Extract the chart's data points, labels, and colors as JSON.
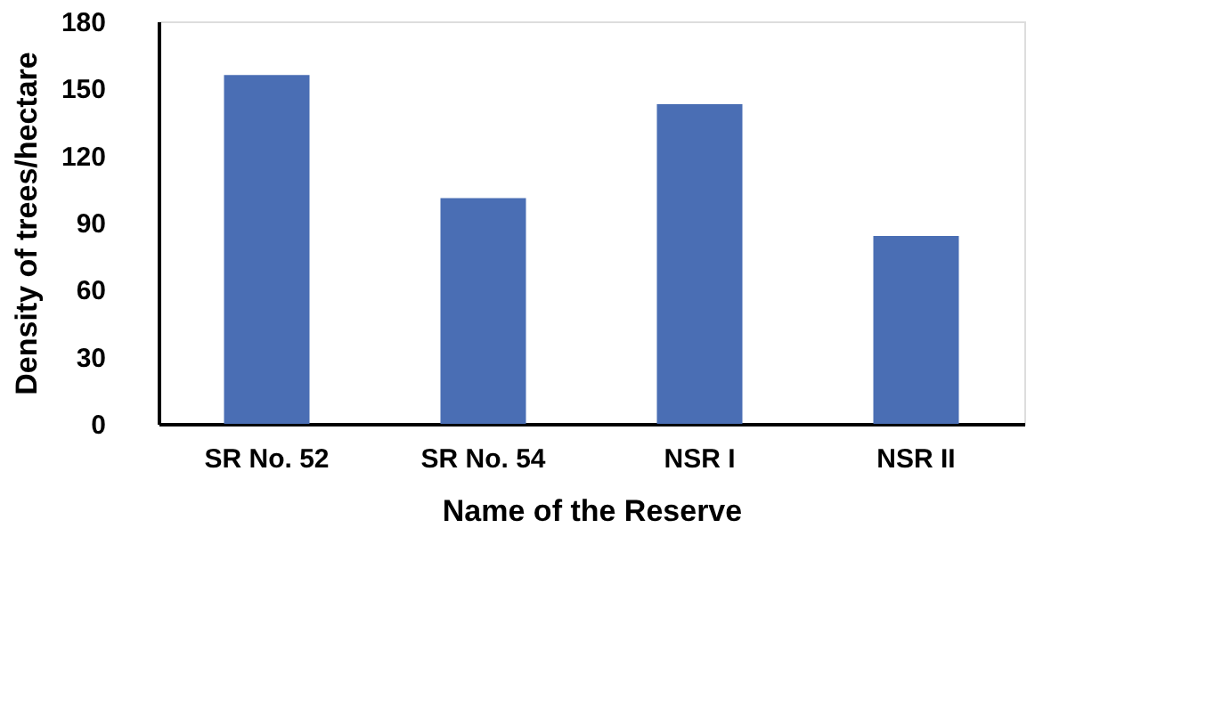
{
  "chart_data": {
    "type": "bar",
    "xlabel": "Name of the Reserve",
    "ylabel": "Density of trees/hectare",
    "categories": [
      "SR No. 52",
      "SR No. 54",
      "NSR I",
      "NSR II"
    ],
    "values": [
      156,
      101,
      143,
      84
    ],
    "color": "#4a6eb4",
    "ylim": [
      0,
      180
    ],
    "yticks": [
      0,
      30,
      60,
      90,
      120,
      150,
      180
    ],
    "grid": false
  }
}
